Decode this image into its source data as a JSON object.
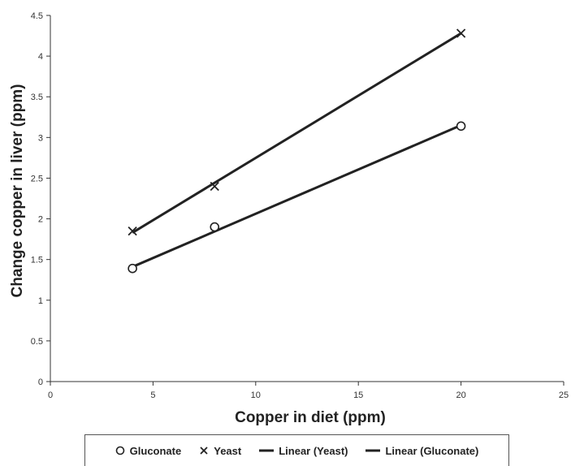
{
  "chart_data": {
    "type": "scatter",
    "xlabel": "Copper in diet (ppm)",
    "ylabel": "Change copper in liver (ppm)",
    "xlim": [
      0,
      25
    ],
    "ylim": [
      0,
      4.5
    ],
    "xticks": [
      "0",
      "5",
      "10",
      "15",
      "20",
      "25"
    ],
    "yticks": [
      "0",
      "0.5",
      "1",
      "1.5",
      "2",
      "2.5",
      "3",
      "3.5",
      "4",
      "4.5"
    ],
    "grid": false,
    "legend_position": "bottom",
    "series": [
      {
        "name": "Gluconate",
        "marker": "circle",
        "x": [
          4,
          8,
          20
        ],
        "y": [
          1.39,
          1.9,
          3.14
        ]
      },
      {
        "name": "Yeast",
        "marker": "x",
        "x": [
          4,
          8,
          20
        ],
        "y": [
          1.85,
          2.4,
          4.28
        ]
      }
    ],
    "trendlines": [
      {
        "name": "Linear (Yeast)",
        "of": "Yeast",
        "x": [
          4,
          20
        ],
        "y": [
          1.83,
          4.28
        ]
      },
      {
        "name": "Linear (Gluconate)",
        "of": "Gluconate",
        "x": [
          4,
          20
        ],
        "y": [
          1.41,
          3.15
        ]
      }
    ],
    "colors": {
      "line": "#222222",
      "marker": "#222222",
      "axis": "#333333"
    }
  },
  "legend": {
    "items": [
      {
        "symbol": "circle",
        "label": "Gluconate"
      },
      {
        "symbol": "x",
        "label": "Yeast"
      },
      {
        "symbol": "line",
        "label": "Linear (Yeast)"
      },
      {
        "symbol": "line",
        "label": "Linear (Gluconate)"
      }
    ]
  }
}
